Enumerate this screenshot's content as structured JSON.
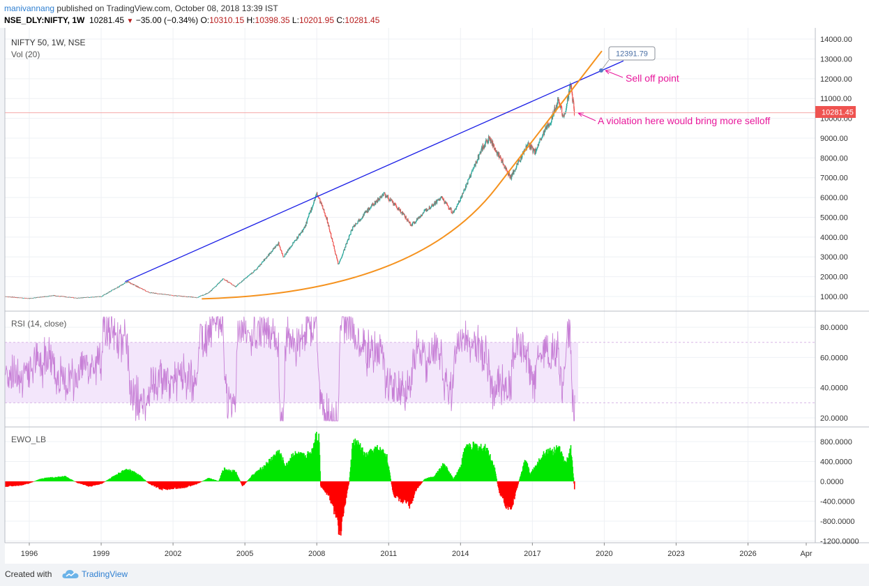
{
  "header": {
    "author": "manivannang",
    "published": "published on TradingView.com, October 08, 2018 13:39 IST",
    "symbol": "NSE_DLY:NIFTY, 1W",
    "last": "10281.45",
    "change": "−35.00 (−0.34%)",
    "o_label": "O:",
    "o_value": "10310.15",
    "h_label": "H:",
    "h_value": "10398.35",
    "l_label": "L:",
    "l_value": "10201.95",
    "c_label": "C:",
    "c_value": "10281.45"
  },
  "footer": {
    "created": "Created with",
    "brand": "TradingView"
  },
  "colors": {
    "up": "#00e600",
    "down": "#ff0000",
    "trendline": "#1a1ee6",
    "curve": "#f5921e",
    "rsi": "#c77fd6",
    "rsi_band": "#f3e6fb",
    "annotation": "#e8179b",
    "price_line": "#f4a7a7"
  },
  "chart_data": [
    {
      "type": "candlestick",
      "title": "NIFTY 50, 1W, NSE",
      "subtitle": "Vol (20)",
      "ylim": [
        0,
        14200
      ],
      "y_ticks": [
        "1000.00",
        "2000.00",
        "3000.00",
        "4000.00",
        "5000.00",
        "6000.00",
        "7000.00",
        "8000.00",
        "9000.00",
        "10000.00",
        "11000.00",
        "12000.00",
        "13000.00",
        "14000.00"
      ],
      "x_ticks": [
        "1996",
        "1999",
        "2002",
        "2005",
        "2008",
        "2011",
        "2014",
        "2017",
        "2020",
        "2023",
        "2026",
        "Apr"
      ],
      "price_path": [
        [
          1995.0,
          1000
        ],
        [
          1996.0,
          900
        ],
        [
          1997.0,
          1050
        ],
        [
          1998.0,
          920
        ],
        [
          1999.0,
          1000
        ],
        [
          2000.1,
          1750
        ],
        [
          2001.0,
          1200
        ],
        [
          2002.0,
          1050
        ],
        [
          2003.0,
          950
        ],
        [
          2003.5,
          1200
        ],
        [
          2004.1,
          1900
        ],
        [
          2004.6,
          1500
        ],
        [
          2005.5,
          2400
        ],
        [
          2006.4,
          3700
        ],
        [
          2006.6,
          3000
        ],
        [
          2007.5,
          4500
        ],
        [
          2008.0,
          6200
        ],
        [
          2008.4,
          5000
        ],
        [
          2008.9,
          2600
        ],
        [
          2009.5,
          4500
        ],
        [
          2010.0,
          5200
        ],
        [
          2010.8,
          6200
        ],
        [
          2011.5,
          5300
        ],
        [
          2011.95,
          4600
        ],
        [
          2012.5,
          5300
        ],
        [
          2013.2,
          6000
        ],
        [
          2013.7,
          5200
        ],
        [
          2014.2,
          6500
        ],
        [
          2014.9,
          8500
        ],
        [
          2015.2,
          9000
        ],
        [
          2016.1,
          7000
        ],
        [
          2016.8,
          8700
        ],
        [
          2017.1,
          8300
        ],
        [
          2017.8,
          10000
        ],
        [
          2018.1,
          11000
        ],
        [
          2018.3,
          10000
        ],
        [
          2018.6,
          11700
        ],
        [
          2018.75,
          10281
        ]
      ],
      "last_price": "10281.45",
      "trendline": {
        "from": [
          2000.0,
          1750
        ],
        "to": [
          2020.8,
          12900
        ]
      },
      "curve": {
        "from": [
          2003.2,
          880
        ],
        "through": [
          2008.9,
          2400
        ],
        "to": [
          2019.9,
          13400
        ]
      },
      "price_callout": "12391.79",
      "annotations": [
        "Sell off point",
        "A violation here would bring more selloff"
      ]
    },
    {
      "type": "line",
      "title": "RSI (14, close)",
      "ylim": [
        15,
        90
      ],
      "band": [
        30,
        70
      ],
      "y_ticks": [
        "20.0000",
        "40.0000",
        "60.0000",
        "80.0000"
      ]
    },
    {
      "type": "histogram",
      "title": "EWO_LB",
      "ylim": [
        -1200,
        1000
      ],
      "y_ticks": [
        "800.0000",
        "400.0000",
        "0.0000",
        "-400.0000",
        "-800.0000",
        "-1200.0000"
      ],
      "values": [
        [
          1995.0,
          -100
        ],
        [
          1995.6,
          -80
        ],
        [
          1996.0,
          -40
        ],
        [
          1996.5,
          60
        ],
        [
          1997.0,
          80
        ],
        [
          1997.5,
          100
        ],
        [
          1998.0,
          -30
        ],
        [
          1998.5,
          -100
        ],
        [
          1999.0,
          -50
        ],
        [
          1999.5,
          100
        ],
        [
          2000.1,
          250
        ],
        [
          2000.6,
          120
        ],
        [
          2001.0,
          -50
        ],
        [
          2001.5,
          -160
        ],
        [
          2002.0,
          -140
        ],
        [
          2002.5,
          -120
        ],
        [
          2003.0,
          -50
        ],
        [
          2003.5,
          70
        ],
        [
          2003.9,
          0
        ],
        [
          2004.1,
          250
        ],
        [
          2004.6,
          200
        ],
        [
          2004.9,
          -100
        ],
        [
          2005.3,
          120
        ],
        [
          2005.8,
          300
        ],
        [
          2006.4,
          600
        ],
        [
          2006.7,
          300
        ],
        [
          2007.0,
          550
        ],
        [
          2007.5,
          500
        ],
        [
          2007.8,
          600
        ],
        [
          2007.95,
          950
        ],
        [
          2008.1,
          850
        ],
        [
          2008.15,
          -100
        ],
        [
          2008.5,
          -300
        ],
        [
          2008.8,
          -700
        ],
        [
          2008.95,
          -1100
        ],
        [
          2009.15,
          -500
        ],
        [
          2009.35,
          0
        ],
        [
          2009.5,
          800
        ],
        [
          2009.8,
          700
        ],
        [
          2010.0,
          500
        ],
        [
          2010.5,
          650
        ],
        [
          2010.9,
          550
        ],
        [
          2011.2,
          -300
        ],
        [
          2011.6,
          -400
        ],
        [
          2011.9,
          -500
        ],
        [
          2012.1,
          -200
        ],
        [
          2012.5,
          50
        ],
        [
          2012.9,
          100
        ],
        [
          2013.3,
          350
        ],
        [
          2013.7,
          50
        ],
        [
          2014.0,
          300
        ],
        [
          2014.2,
          700
        ],
        [
          2014.6,
          700
        ],
        [
          2015.1,
          650
        ],
        [
          2015.4,
          300
        ],
        [
          2015.6,
          -200
        ],
        [
          2015.9,
          -500
        ],
        [
          2016.1,
          -600
        ],
        [
          2016.4,
          -50
        ],
        [
          2016.7,
          450
        ],
        [
          2016.9,
          150
        ],
        [
          2017.2,
          350
        ],
        [
          2017.5,
          600
        ],
        [
          2017.8,
          600
        ],
        [
          2018.1,
          650
        ],
        [
          2018.4,
          350
        ],
        [
          2018.6,
          700
        ],
        [
          2018.75,
          -150
        ]
      ]
    }
  ]
}
